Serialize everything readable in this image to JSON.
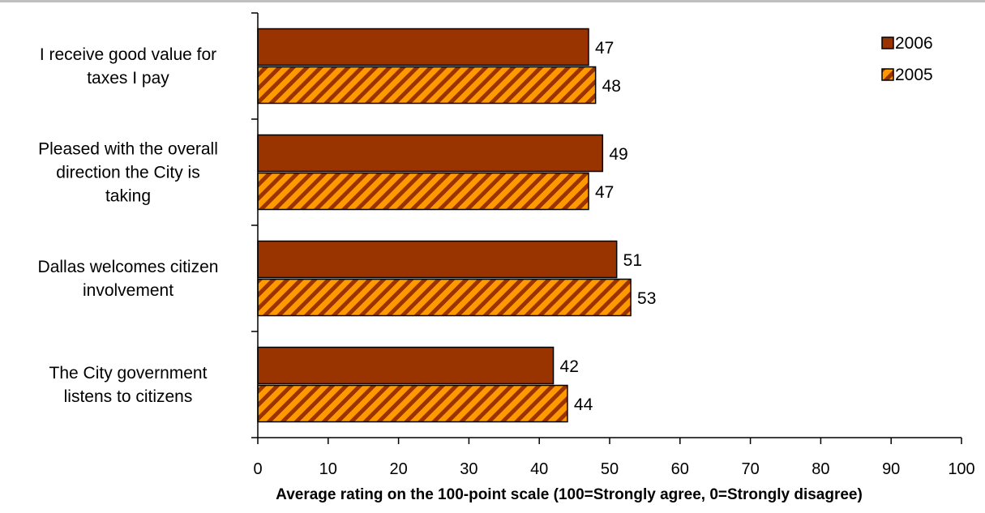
{
  "chart_data": {
    "type": "bar",
    "orientation": "horizontal",
    "title": "",
    "xlabel": "Average rating on the 100-point scale (100=Strongly agree, 0=Strongly disagree)",
    "ylabel": "",
    "xlim": [
      0,
      100
    ],
    "x_ticks": [
      "0",
      "10",
      "20",
      "30",
      "40",
      "50",
      "60",
      "70",
      "80",
      "90",
      "100"
    ],
    "categories": [
      [
        "I receive good value for",
        "taxes I pay"
      ],
      [
        "Pleased with the overall",
        "direction the City is",
        "taking"
      ],
      [
        "Dallas welcomes citizen",
        "involvement"
      ],
      [
        "The City government",
        "listens to citizens"
      ]
    ],
    "series": [
      {
        "name": "2006",
        "values": [
          47,
          49,
          51,
          42
        ],
        "color": "#993300",
        "pattern": "solid"
      },
      {
        "name": "2005",
        "values": [
          48,
          47,
          53,
          44
        ],
        "color": "#ff9900",
        "pattern_color": "#993300",
        "pattern": "diagonal-stripes"
      }
    ],
    "grid": false,
    "legend": "top-right",
    "data_labels": true
  }
}
